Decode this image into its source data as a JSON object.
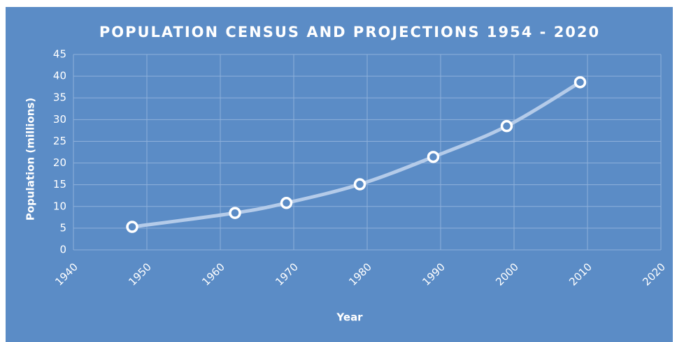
{
  "chart_data": {
    "type": "line",
    "title": "POPULATION CENSUS AND PROJECTIONS 1954 - 2020",
    "x_label": "Year",
    "y_label": "Population (millions)",
    "x": [
      1948,
      1962,
      1969,
      1979,
      1989,
      1999,
      2009
    ],
    "series": [
      {
        "name": "Population",
        "color": "#b4cbe9",
        "values": [
          5.3,
          8.5,
          10.8,
          15.1,
          21.4,
          28.5,
          38.6
        ]
      }
    ],
    "xlim": [
      1940,
      2020
    ],
    "xticks": [
      1940,
      1950,
      1960,
      1970,
      1980,
      1990,
      2000,
      2010,
      2020
    ],
    "ylim": [
      0,
      45
    ],
    "yticks": [
      0,
      5,
      10,
      15,
      20,
      25,
      30,
      35,
      40,
      45
    ],
    "grid": true
  }
}
